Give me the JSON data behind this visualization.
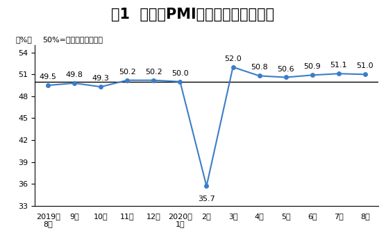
{
  "title": "图1  制造业PMI指数（经季节调整）",
  "ylabel": "（%）",
  "subtitle": "50%=与上月比较无变化",
  "x_labels": [
    "2019年\n8月",
    "9月",
    "10月",
    "11月",
    "12月",
    "2020年\n1月",
    "2月",
    "3月",
    "4月",
    "5月",
    "6月",
    "7月",
    "8月"
  ],
  "y_values": [
    49.5,
    49.8,
    49.3,
    50.2,
    50.2,
    50.0,
    35.7,
    52.0,
    50.8,
    50.6,
    50.9,
    51.1,
    51.0
  ],
  "ylim": [
    33,
    55
  ],
  "yticks": [
    33,
    36,
    39,
    42,
    45,
    48,
    51,
    54
  ],
  "hline_y": 50.0,
  "line_color": "#3b7dc8",
  "marker_color": "#3b7dc8",
  "bg_color": "#ffffff",
  "plot_bg_color": "#ffffff",
  "title_fontsize": 15,
  "label_fontsize": 8,
  "subtitle_fontsize": 8,
  "axis_fontsize": 8,
  "label_offsets": [
    5,
    5,
    5,
    5,
    5,
    5,
    -10,
    5,
    5,
    5,
    5,
    5,
    5
  ]
}
